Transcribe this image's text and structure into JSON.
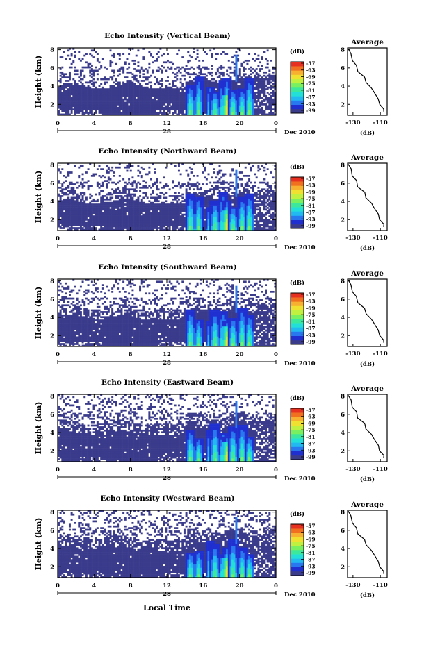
{
  "chart_data": {
    "type": "heatmap",
    "units": "(dB)",
    "date_label": "Dec 2010",
    "day_label": "28",
    "xlabel": "Local Time",
    "ylabel": "Height (km)",
    "x_ticks": [
      "0",
      "4",
      "8",
      "12",
      "16",
      "20",
      "0"
    ],
    "xlim": [
      0,
      24
    ],
    "y_ticks": [
      "2",
      "4",
      "6",
      "8"
    ],
    "ylim": [
      0.8,
      8.2
    ],
    "colorbar_ticks": [
      "-57",
      "-63",
      "-69",
      "-75",
      "-81",
      "-87",
      "-93",
      "-99"
    ],
    "colors": [
      "#3b3b8c",
      "#2030d0",
      "#2878f0",
      "#22b8f0",
      "#22e0d8",
      "#3ce89c",
      "#78f060",
      "#c0f040",
      "#f0e030",
      "#f8b030",
      "#f07020",
      "#e83020"
    ],
    "profile": {
      "title": "Average",
      "xlabel": "(dB)",
      "x_ticks": [
        "-130",
        "-110"
      ],
      "xlim": [
        -134,
        -105
      ],
      "y_ticks": [
        "2",
        "4",
        "6",
        "8"
      ],
      "points": [
        [
          -133,
          8.1
        ],
        [
          -132,
          7.6
        ],
        [
          -130,
          6.8
        ],
        [
          -128,
          6.3
        ],
        [
          -126,
          5.6
        ],
        [
          -122,
          5.0
        ],
        [
          -120,
          4.4
        ],
        [
          -117,
          3.8
        ],
        [
          -114,
          3.3
        ],
        [
          -112,
          2.6
        ],
        [
          -110,
          2.0
        ],
        [
          -108,
          1.5
        ],
        [
          -107,
          1.2
        ]
      ]
    },
    "panels": [
      {
        "title": "Echo Intensity (Vertical Beam)"
      },
      {
        "title": "Echo Intensity (Northward Beam)"
      },
      {
        "title": "Echo Intensity (Southward Beam)"
      },
      {
        "title": "Echo Intensity (Eastward Beam)"
      },
      {
        "title": "Echo Intensity (Westward Beam)"
      }
    ]
  }
}
